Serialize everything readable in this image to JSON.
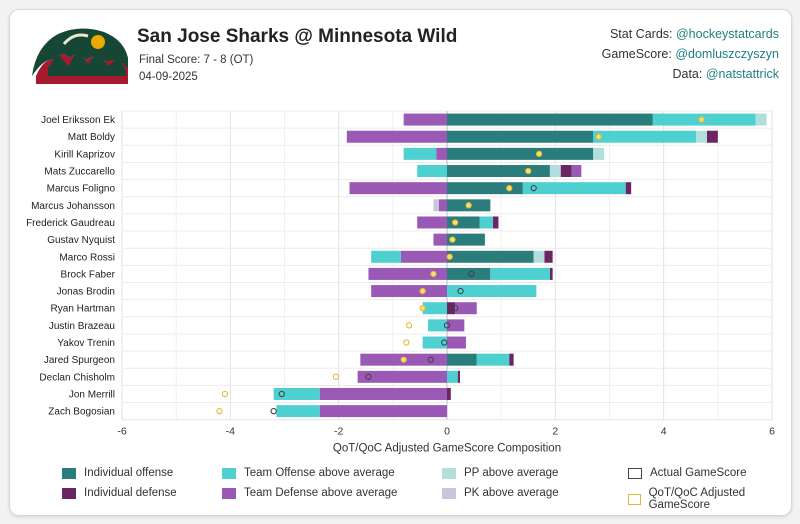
{
  "header": {
    "title": "San Jose Sharks @ Minnesota Wild",
    "final_score": "Final Score: 7 - 8 (OT)",
    "date": "04-09-2025"
  },
  "credits": [
    {
      "label": "Stat Cards:",
      "handle": "@hockeystatcards"
    },
    {
      "label": "GameScore:",
      "handle": "@domluszczyszyn"
    },
    {
      "label": "Data:",
      "handle": "@natstattrick"
    }
  ],
  "colors": {
    "individual_offense": "#2a7d7b",
    "team_offense": "#4fd0d0",
    "pp": "#b3dede",
    "individual_defense": "#6b2563",
    "team_defense": "#9b59b6",
    "pk": "#c6c6dd",
    "adjusted_marker": "#e8b440",
    "actual_marker": "#444444"
  },
  "legend": [
    {
      "key": "individual_offense",
      "label": "Individual offense",
      "kind": "box"
    },
    {
      "key": "team_offense",
      "label": "Team Offense above average",
      "kind": "box"
    },
    {
      "key": "pp",
      "label": "PP above average",
      "kind": "box"
    },
    {
      "key": "actual_marker",
      "label": "Actual GameScore",
      "kind": "hollow"
    },
    {
      "key": "individual_defense",
      "label": "Individual defense",
      "kind": "box"
    },
    {
      "key": "team_defense",
      "label": "Team Defense above average",
      "kind": "box"
    },
    {
      "key": "pk",
      "label": "PK above average",
      "kind": "box"
    },
    {
      "key": "adjusted_marker",
      "label": "QoT/QoC Adjusted GameScore",
      "kind": "hollow"
    }
  ],
  "chart_data": {
    "type": "bar",
    "orientation": "horizontal-stacked",
    "xlabel": "QoT/QoC Adjusted GameScore Composition",
    "xlim": [
      -6,
      6
    ],
    "xticks": [
      -6,
      -4,
      -2,
      0,
      2,
      4,
      6
    ],
    "grid": true,
    "legend_position": "bottom",
    "players": [
      "Joel Eriksson Ek",
      "Matt Boldy",
      "Kirill Kaprizov",
      "Mats Zuccarello",
      "Marcus Foligno",
      "Marcus Johansson",
      "Frederick Gaudreau",
      "Gustav Nyquist",
      "Marco Rossi",
      "Brock Faber",
      "Jonas Brodin",
      "Ryan Hartman",
      "Justin Brazeau",
      "Yakov Trenin",
      "Jared Spurgeon",
      "Declan Chisholm",
      "Jon Merrill",
      "Zach Bogosian"
    ],
    "series": [
      {
        "name": "Individual offense",
        "color_key": "individual_offense",
        "values": [
          3.8,
          2.7,
          2.7,
          1.9,
          1.4,
          0.8,
          0.6,
          0.7,
          1.6,
          0.8,
          0.0,
          0.0,
          0.0,
          0.0,
          0.55,
          0.0,
          0.0,
          0.0
        ]
      },
      {
        "name": "Team Offense above average",
        "color_key": "team_offense",
        "values": [
          1.9,
          1.9,
          0.0,
          0.0,
          1.9,
          0.0,
          0.25,
          0.0,
          0.0,
          1.1,
          1.65,
          0.0,
          0.0,
          0.0,
          0.6,
          0.2,
          0.0,
          0.0
        ]
      },
      {
        "name": "PP above average",
        "color_key": "pp",
        "values": [
          0.2,
          0.2,
          0.2,
          0.2,
          0.0,
          0.0,
          0.0,
          0.0,
          0.2,
          0.0,
          0.0,
          0.0,
          0.0,
          0.0,
          0.0,
          0.0,
          0.0,
          0.0
        ]
      },
      {
        "name": "Individual defense",
        "color_key": "individual_defense",
        "values": [
          0.0,
          0.2,
          0.0,
          0.2,
          0.1,
          0.0,
          0.1,
          0.0,
          0.15,
          0.05,
          0.0,
          0.15,
          0.0,
          0.0,
          0.08,
          0.04,
          0.07,
          0.0
        ]
      },
      {
        "name": "Team Defense above average",
        "color_key": "team_defense",
        "values": [
          -0.8,
          -1.85,
          -0.2,
          0.18,
          -1.8,
          -0.15,
          -0.55,
          -0.25,
          -0.85,
          -1.45,
          -1.4,
          0.4,
          0.32,
          0.35,
          -1.6,
          -1.65,
          -2.35,
          -2.35
        ]
      },
      {
        "name": "PK above average",
        "color_key": "pk",
        "values": [
          0.0,
          0.0,
          0.0,
          0.0,
          0.0,
          0.0,
          0.0,
          0.0,
          0.0,
          0.0,
          0.0,
          0.0,
          0.0,
          0.0,
          0.0,
          0.0,
          0.0,
          0.0
        ]
      },
      {
        "name": "Team Offense (negative)",
        "color_key": "team_offense",
        "values": [
          0.0,
          0.0,
          -0.6,
          -0.55,
          0.0,
          0.0,
          0.0,
          0.0,
          -0.55,
          0.0,
          0.0,
          -0.45,
          -0.35,
          -0.45,
          0.0,
          0.0,
          -0.85,
          -0.8
        ]
      },
      {
        "name": "PK (negative)",
        "color_key": "pk",
        "values": [
          0.0,
          0.0,
          0.0,
          0.0,
          0.0,
          -0.1,
          0.0,
          0.0,
          0.0,
          0.0,
          0.0,
          0.0,
          0.0,
          0.0,
          0.0,
          0.0,
          0.0,
          0.0
        ]
      }
    ],
    "actual_gamescore": [
      null,
      null,
      null,
      null,
      1.6,
      null,
      0.15,
      null,
      0.05,
      0.45,
      0.25,
      0.15,
      0.0,
      -0.05,
      -0.3,
      -1.45,
      -3.05,
      -3.2
    ],
    "adjusted_gamescore": [
      4.7,
      2.8,
      1.7,
      1.5,
      1.15,
      0.4,
      0.15,
      0.1,
      0.05,
      -0.25,
      -0.45,
      -0.45,
      -0.7,
      -0.75,
      -0.8,
      -2.05,
      -4.1,
      -4.2
    ]
  }
}
